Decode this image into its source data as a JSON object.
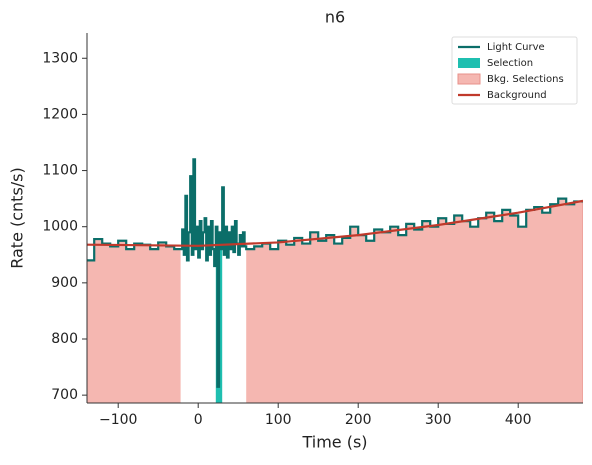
{
  "chart_data": {
    "type": "line",
    "title": "n6",
    "xlabel": "Time (s)",
    "ylabel": "Rate (cnts/s)",
    "xlim": [
      -139,
      481
    ],
    "ylim": [
      686,
      1345
    ],
    "xticks": [
      {
        "value": -100,
        "label": "−100"
      },
      0,
      100,
      200,
      300,
      400
    ],
    "yticks": [
      700,
      800,
      900,
      1000,
      1100,
      1200,
      1300
    ],
    "series": [
      {
        "name": "Light Curve",
        "color": "#0b6e69",
        "step": true,
        "x": [
          -140,
          -130,
          -120,
          -110,
          -100,
          -90,
          -80,
          -70,
          -60,
          -50,
          -40,
          -30,
          -20,
          -18,
          -16,
          -14,
          -12,
          -10,
          -8,
          -6,
          -4,
          -2,
          0,
          2,
          4,
          6,
          8,
          10,
          12,
          14,
          16,
          18,
          20,
          22,
          24,
          26,
          28,
          30,
          32,
          34,
          36,
          38,
          40,
          42,
          44,
          46,
          48,
          50,
          52,
          54,
          56,
          58,
          60,
          70,
          80,
          90,
          100,
          110,
          120,
          130,
          140,
          150,
          160,
          170,
          180,
          190,
          200,
          210,
          220,
          230,
          240,
          250,
          260,
          270,
          280,
          290,
          300,
          310,
          320,
          330,
          340,
          350,
          360,
          370,
          380,
          390,
          400,
          410,
          420,
          430,
          440,
          450,
          460,
          470
        ],
        "values": [
          940,
          978,
          970,
          965,
          975,
          960,
          970,
          968,
          960,
          972,
          965,
          960,
          995,
          950,
          1055,
          940,
          990,
          1090,
          950,
          1120,
          960,
          1000,
          945,
          1010,
          960,
          990,
          1015,
          940,
          1000,
          950,
          1010,
          960,
          930,
          1000,
          715,
          990,
          960,
          1070,
          950,
          1000,
          945,
          990,
          960,
          1000,
          955,
          1010,
          970,
          950,
          985,
          965,
          990,
          965,
          960,
          965,
          970,
          960,
          975,
          968,
          980,
          970,
          990,
          975,
          985,
          970,
          980,
          1000,
          985,
          975,
          995,
          990,
          1000,
          985,
          1005,
          995,
          1010,
          1000,
          1015,
          1005,
          1020,
          1010,
          1000,
          1015,
          1025,
          1010,
          1030,
          1020,
          1000,
          1030,
          1035,
          1025,
          1040,
          1050,
          1040,
          1045
        ]
      },
      {
        "name": "Background",
        "color": "#c0392b",
        "x": [
          -139,
          0,
          100,
          200,
          300,
          400,
          481
        ],
        "values": [
          968,
          966,
          972,
          985,
          1003,
          1025,
          1046
        ]
      }
    ],
    "regions": [
      {
        "name": "Selection",
        "color": "#1fbfb0",
        "ranges": [
          [
            22,
            30
          ]
        ]
      },
      {
        "name": "Bkg. Selections",
        "color": "#f5b7b1",
        "edgecolor": "#e8918a",
        "ranges": [
          [
            -139,
            -22
          ],
          [
            60,
            481
          ]
        ]
      }
    ]
  }
}
